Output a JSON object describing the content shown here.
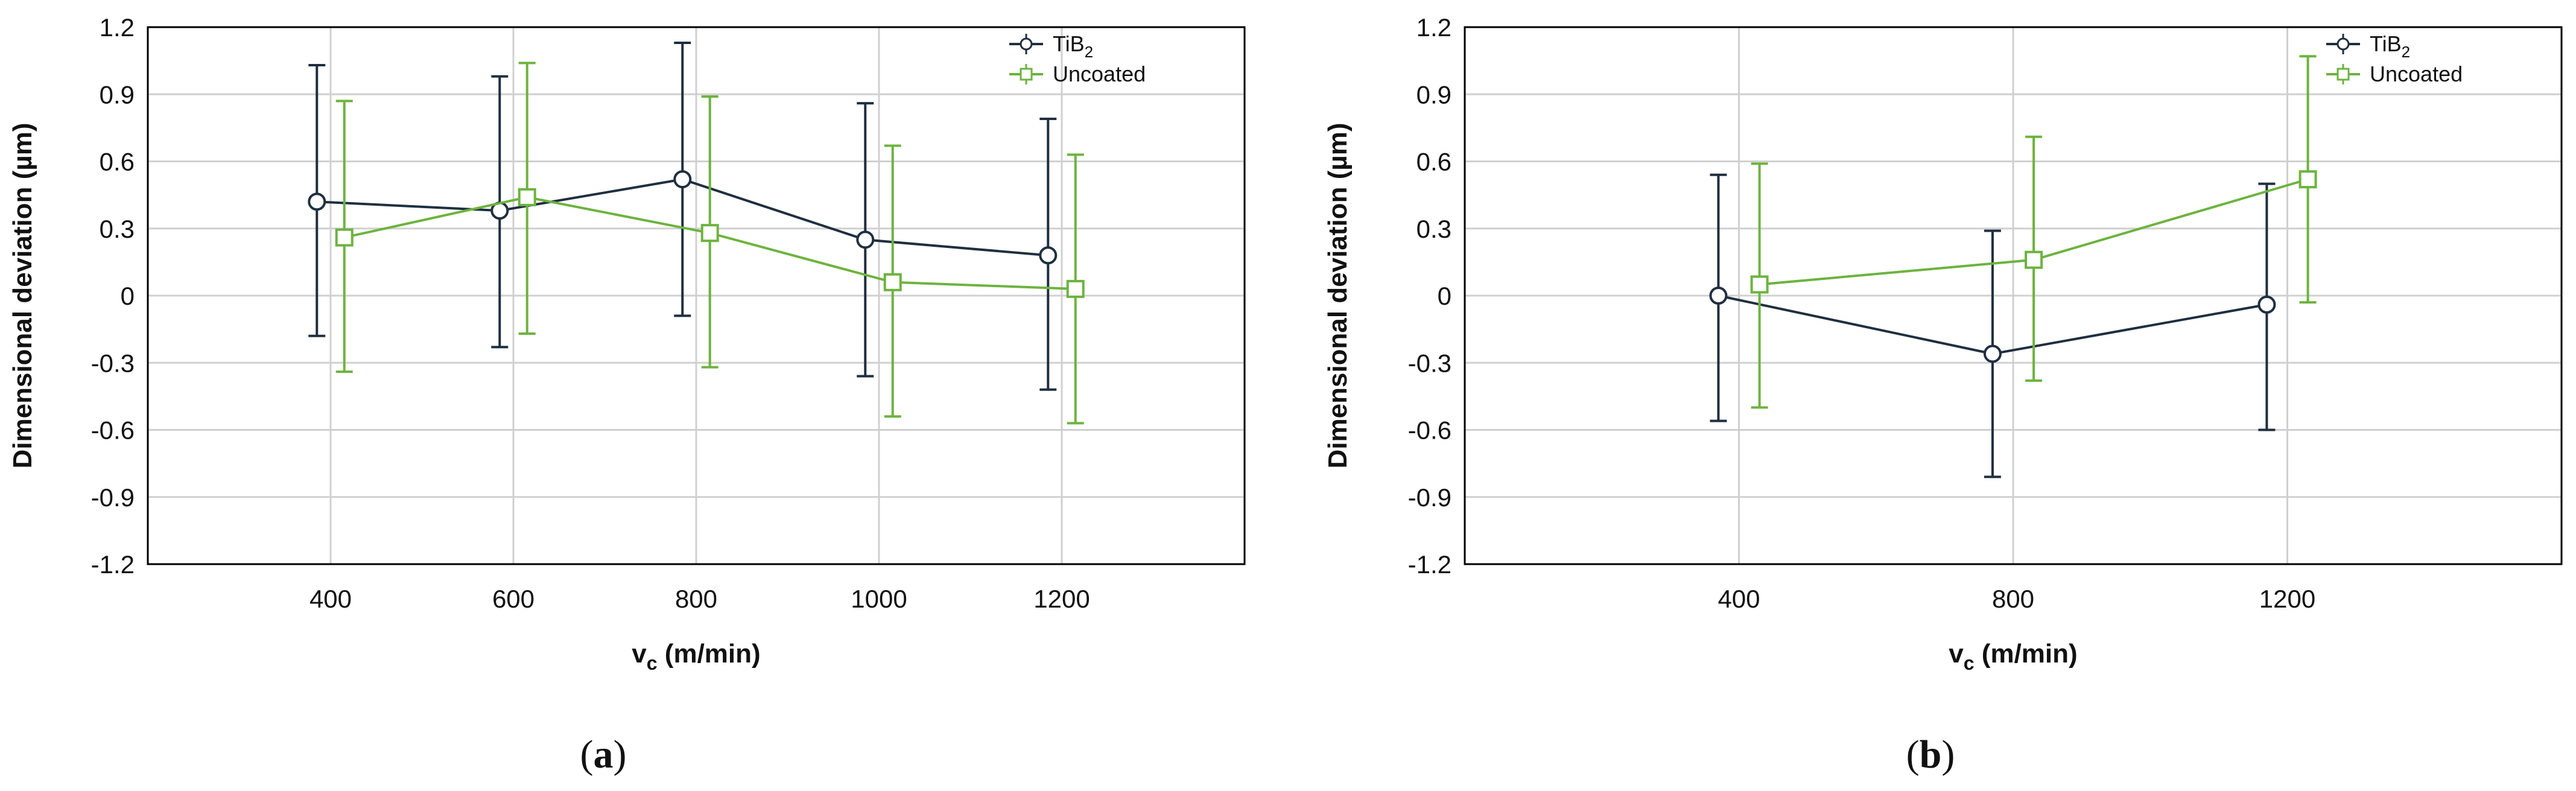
{
  "colors": {
    "tib2": "#1f2f3f",
    "uncoated": "#6db33f",
    "grid": "#d0d0d0",
    "frame": "#000000"
  },
  "chart_data": [
    {
      "type": "line",
      "xlabel_main": "v",
      "xlabel_sub": "c",
      "xlabel_rest": " (m/min)",
      "ylabel": "Dimensional deviation (µm)",
      "ylim": [
        -1.2,
        1.2
      ],
      "xlim": [
        200,
        1400
      ],
      "y_ticks": [
        "1.2",
        "0.9",
        "0.6",
        "0.3",
        "0",
        "-0.3",
        "-0.6",
        "-0.9",
        "-1.2"
      ],
      "y_tick_values": [
        1.2,
        0.9,
        0.6,
        0.3,
        0,
        -0.3,
        -0.6,
        -0.9,
        -1.2
      ],
      "x_ticks": [
        "400",
        "600",
        "800",
        "1000",
        "1200"
      ],
      "x_tick_values": [
        400,
        600,
        800,
        1000,
        1200
      ],
      "legend_position": "top-right",
      "caption_open": "(",
      "caption_letter": "a",
      "caption_close": ")",
      "series": [
        {
          "name_main": "TiB",
          "name_sub": "2",
          "marker": "circle",
          "color": "#1f2f3f",
          "x": [
            385,
            585,
            785,
            985,
            1185
          ],
          "y": [
            0.42,
            0.38,
            0.52,
            0.25,
            0.18
          ],
          "upper": [
            1.03,
            0.98,
            1.13,
            0.86,
            0.79
          ],
          "lower": [
            -0.18,
            -0.23,
            -0.09,
            -0.36,
            -0.42
          ]
        },
        {
          "name_main": "Uncoated",
          "name_sub": "",
          "marker": "square",
          "color": "#6db33f",
          "x": [
            415,
            615,
            815,
            1015,
            1215
          ],
          "y": [
            0.26,
            0.44,
            0.28,
            0.06,
            0.03
          ],
          "upper": [
            0.87,
            1.04,
            0.89,
            0.67,
            0.63
          ],
          "lower": [
            -0.34,
            -0.17,
            -0.32,
            -0.54,
            -0.57
          ]
        }
      ]
    },
    {
      "type": "line",
      "xlabel_main": "v",
      "xlabel_sub": "c",
      "xlabel_rest": " (m/min)",
      "ylabel": "Dimensional deviation (µm)",
      "ylim": [
        -1.2,
        1.2
      ],
      "xlim": [
        0,
        1600
      ],
      "y_ticks": [
        "1.2",
        "0.9",
        "0.6",
        "0.3",
        "0",
        "-0.3",
        "-0.6",
        "-0.9",
        "-1.2"
      ],
      "y_tick_values": [
        1.2,
        0.9,
        0.6,
        0.3,
        0,
        -0.3,
        -0.6,
        -0.9,
        -1.2
      ],
      "x_ticks": [
        "400",
        "800",
        "1200"
      ],
      "x_tick_values": [
        400,
        800,
        1200
      ],
      "legend_position": "top-right",
      "caption_open": "(",
      "caption_letter": "b",
      "caption_close": ")",
      "series": [
        {
          "name_main": "TiB",
          "name_sub": "2",
          "marker": "circle",
          "color": "#1f2f3f",
          "x": [
            370,
            770,
            1170
          ],
          "y": [
            0.0,
            -0.26,
            -0.04
          ],
          "upper": [
            0.54,
            0.29,
            0.5
          ],
          "lower": [
            -0.56,
            -0.81,
            -0.6
          ]
        },
        {
          "name_main": "Uncoated",
          "name_sub": "",
          "marker": "square",
          "color": "#6db33f",
          "x": [
            430,
            830,
            1230
          ],
          "y": [
            0.05,
            0.16,
            0.52
          ],
          "upper": [
            0.59,
            0.71,
            1.07
          ],
          "lower": [
            -0.5,
            -0.38,
            -0.03
          ]
        }
      ]
    }
  ]
}
